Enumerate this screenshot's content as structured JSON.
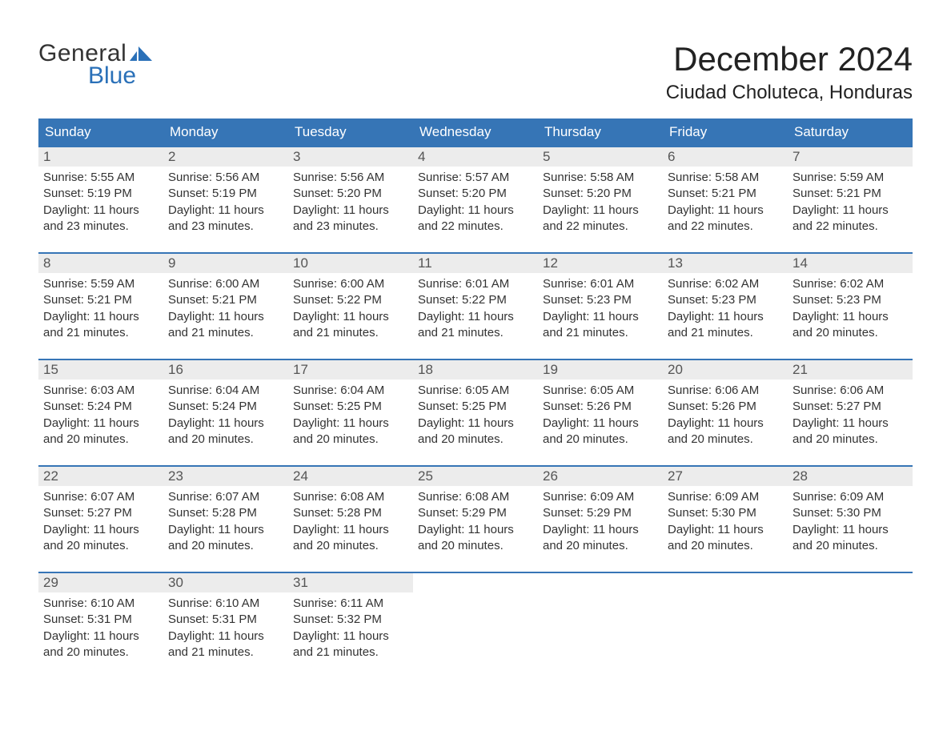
{
  "logo": {
    "top": "General",
    "bottom": "Blue"
  },
  "title": "December 2024",
  "location": "Ciudad Choluteca, Honduras",
  "colors": {
    "header_bg": "#3675b6",
    "header_text": "#ffffff",
    "daynum_bg": "#ececec",
    "row_border": "#3675b6",
    "logo_blue": "#2a70b8",
    "text": "#333333",
    "background": "#ffffff"
  },
  "day_headers": [
    "Sunday",
    "Monday",
    "Tuesday",
    "Wednesday",
    "Thursday",
    "Friday",
    "Saturday"
  ],
  "layout": {
    "columns": 7,
    "rows": 5,
    "cell_font_size": 15,
    "header_font_size": 17,
    "title_font_size": 42,
    "location_font_size": 24
  },
  "days": [
    {
      "num": "1",
      "sunrise": "Sunrise: 5:55 AM",
      "sunset": "Sunset: 5:19 PM",
      "daylight1": "Daylight: 11 hours",
      "daylight2": "and 23 minutes."
    },
    {
      "num": "2",
      "sunrise": "Sunrise: 5:56 AM",
      "sunset": "Sunset: 5:19 PM",
      "daylight1": "Daylight: 11 hours",
      "daylight2": "and 23 minutes."
    },
    {
      "num": "3",
      "sunrise": "Sunrise: 5:56 AM",
      "sunset": "Sunset: 5:20 PM",
      "daylight1": "Daylight: 11 hours",
      "daylight2": "and 23 minutes."
    },
    {
      "num": "4",
      "sunrise": "Sunrise: 5:57 AM",
      "sunset": "Sunset: 5:20 PM",
      "daylight1": "Daylight: 11 hours",
      "daylight2": "and 22 minutes."
    },
    {
      "num": "5",
      "sunrise": "Sunrise: 5:58 AM",
      "sunset": "Sunset: 5:20 PM",
      "daylight1": "Daylight: 11 hours",
      "daylight2": "and 22 minutes."
    },
    {
      "num": "6",
      "sunrise": "Sunrise: 5:58 AM",
      "sunset": "Sunset: 5:21 PM",
      "daylight1": "Daylight: 11 hours",
      "daylight2": "and 22 minutes."
    },
    {
      "num": "7",
      "sunrise": "Sunrise: 5:59 AM",
      "sunset": "Sunset: 5:21 PM",
      "daylight1": "Daylight: 11 hours",
      "daylight2": "and 22 minutes."
    },
    {
      "num": "8",
      "sunrise": "Sunrise: 5:59 AM",
      "sunset": "Sunset: 5:21 PM",
      "daylight1": "Daylight: 11 hours",
      "daylight2": "and 21 minutes."
    },
    {
      "num": "9",
      "sunrise": "Sunrise: 6:00 AM",
      "sunset": "Sunset: 5:21 PM",
      "daylight1": "Daylight: 11 hours",
      "daylight2": "and 21 minutes."
    },
    {
      "num": "10",
      "sunrise": "Sunrise: 6:00 AM",
      "sunset": "Sunset: 5:22 PM",
      "daylight1": "Daylight: 11 hours",
      "daylight2": "and 21 minutes."
    },
    {
      "num": "11",
      "sunrise": "Sunrise: 6:01 AM",
      "sunset": "Sunset: 5:22 PM",
      "daylight1": "Daylight: 11 hours",
      "daylight2": "and 21 minutes."
    },
    {
      "num": "12",
      "sunrise": "Sunrise: 6:01 AM",
      "sunset": "Sunset: 5:23 PM",
      "daylight1": "Daylight: 11 hours",
      "daylight2": "and 21 minutes."
    },
    {
      "num": "13",
      "sunrise": "Sunrise: 6:02 AM",
      "sunset": "Sunset: 5:23 PM",
      "daylight1": "Daylight: 11 hours",
      "daylight2": "and 21 minutes."
    },
    {
      "num": "14",
      "sunrise": "Sunrise: 6:02 AM",
      "sunset": "Sunset: 5:23 PM",
      "daylight1": "Daylight: 11 hours",
      "daylight2": "and 20 minutes."
    },
    {
      "num": "15",
      "sunrise": "Sunrise: 6:03 AM",
      "sunset": "Sunset: 5:24 PM",
      "daylight1": "Daylight: 11 hours",
      "daylight2": "and 20 minutes."
    },
    {
      "num": "16",
      "sunrise": "Sunrise: 6:04 AM",
      "sunset": "Sunset: 5:24 PM",
      "daylight1": "Daylight: 11 hours",
      "daylight2": "and 20 minutes."
    },
    {
      "num": "17",
      "sunrise": "Sunrise: 6:04 AM",
      "sunset": "Sunset: 5:25 PM",
      "daylight1": "Daylight: 11 hours",
      "daylight2": "and 20 minutes."
    },
    {
      "num": "18",
      "sunrise": "Sunrise: 6:05 AM",
      "sunset": "Sunset: 5:25 PM",
      "daylight1": "Daylight: 11 hours",
      "daylight2": "and 20 minutes."
    },
    {
      "num": "19",
      "sunrise": "Sunrise: 6:05 AM",
      "sunset": "Sunset: 5:26 PM",
      "daylight1": "Daylight: 11 hours",
      "daylight2": "and 20 minutes."
    },
    {
      "num": "20",
      "sunrise": "Sunrise: 6:06 AM",
      "sunset": "Sunset: 5:26 PM",
      "daylight1": "Daylight: 11 hours",
      "daylight2": "and 20 minutes."
    },
    {
      "num": "21",
      "sunrise": "Sunrise: 6:06 AM",
      "sunset": "Sunset: 5:27 PM",
      "daylight1": "Daylight: 11 hours",
      "daylight2": "and 20 minutes."
    },
    {
      "num": "22",
      "sunrise": "Sunrise: 6:07 AM",
      "sunset": "Sunset: 5:27 PM",
      "daylight1": "Daylight: 11 hours",
      "daylight2": "and 20 minutes."
    },
    {
      "num": "23",
      "sunrise": "Sunrise: 6:07 AM",
      "sunset": "Sunset: 5:28 PM",
      "daylight1": "Daylight: 11 hours",
      "daylight2": "and 20 minutes."
    },
    {
      "num": "24",
      "sunrise": "Sunrise: 6:08 AM",
      "sunset": "Sunset: 5:28 PM",
      "daylight1": "Daylight: 11 hours",
      "daylight2": "and 20 minutes."
    },
    {
      "num": "25",
      "sunrise": "Sunrise: 6:08 AM",
      "sunset": "Sunset: 5:29 PM",
      "daylight1": "Daylight: 11 hours",
      "daylight2": "and 20 minutes."
    },
    {
      "num": "26",
      "sunrise": "Sunrise: 6:09 AM",
      "sunset": "Sunset: 5:29 PM",
      "daylight1": "Daylight: 11 hours",
      "daylight2": "and 20 minutes."
    },
    {
      "num": "27",
      "sunrise": "Sunrise: 6:09 AM",
      "sunset": "Sunset: 5:30 PM",
      "daylight1": "Daylight: 11 hours",
      "daylight2": "and 20 minutes."
    },
    {
      "num": "28",
      "sunrise": "Sunrise: 6:09 AM",
      "sunset": "Sunset: 5:30 PM",
      "daylight1": "Daylight: 11 hours",
      "daylight2": "and 20 minutes."
    },
    {
      "num": "29",
      "sunrise": "Sunrise: 6:10 AM",
      "sunset": "Sunset: 5:31 PM",
      "daylight1": "Daylight: 11 hours",
      "daylight2": "and 20 minutes."
    },
    {
      "num": "30",
      "sunrise": "Sunrise: 6:10 AM",
      "sunset": "Sunset: 5:31 PM",
      "daylight1": "Daylight: 11 hours",
      "daylight2": "and 21 minutes."
    },
    {
      "num": "31",
      "sunrise": "Sunrise: 6:11 AM",
      "sunset": "Sunset: 5:32 PM",
      "daylight1": "Daylight: 11 hours",
      "daylight2": "and 21 minutes."
    }
  ]
}
